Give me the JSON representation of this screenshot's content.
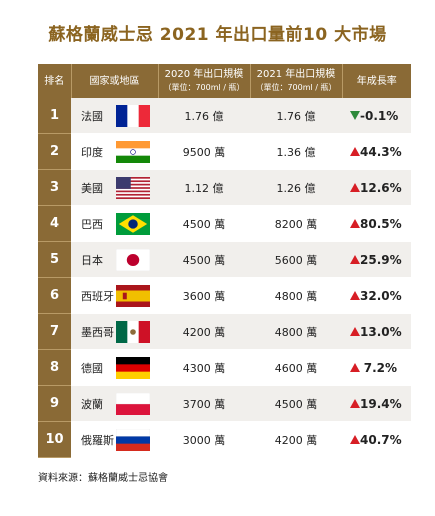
{
  "title": "蘇格蘭威士忌 2021 年出口量前10 大市場",
  "headers": {
    "rank": "排名",
    "country": "國家或地區",
    "y2020_line1": "2020 年出口規模",
    "y2020_line2": "（單位：700ml / 瓶）",
    "y2021_line1": "2021 年出口規模",
    "y2021_line2": "（單位：700ml / 瓶）",
    "growth": "年成長率"
  },
  "rows": [
    {
      "rank": "1",
      "country": "法國",
      "flag": "france-flag-icon",
      "v2020": "1.76 億",
      "v2021": "1.76 億",
      "growth": "-0.1%",
      "trend": "down"
    },
    {
      "rank": "2",
      "country": "印度",
      "flag": "india-flag-icon",
      "v2020": "9500 萬",
      "v2021": "1.36 億",
      "growth": "44.3%",
      "trend": "up"
    },
    {
      "rank": "3",
      "country": "美國",
      "flag": "usa-flag-icon",
      "v2020": "1.12 億",
      "v2021": "1.26 億",
      "growth": "12.6%",
      "trend": "up"
    },
    {
      "rank": "4",
      "country": "巴西",
      "flag": "brazil-flag-icon",
      "v2020": "4500 萬",
      "v2021": "8200 萬",
      "growth": "80.5%",
      "trend": "up"
    },
    {
      "rank": "5",
      "country": "日本",
      "flag": "japan-flag-icon",
      "v2020": "4500 萬",
      "v2021": "5600 萬",
      "growth": "25.9%",
      "trend": "up"
    },
    {
      "rank": "6",
      "country": "西班牙",
      "flag": "spain-flag-icon",
      "v2020": "3600 萬",
      "v2021": "4800 萬",
      "growth": "32.0%",
      "trend": "up"
    },
    {
      "rank": "7",
      "country": "墨西哥",
      "flag": "mexico-flag-icon",
      "v2020": "4200 萬",
      "v2021": "4800 萬",
      "growth": "13.0%",
      "trend": "up"
    },
    {
      "rank": "8",
      "country": "德國",
      "flag": "germany-flag-icon",
      "v2020": "4300 萬",
      "v2021": "4600 萬",
      "growth": "7.2%",
      "trend": "up"
    },
    {
      "rank": "9",
      "country": "波蘭",
      "flag": "poland-flag-icon",
      "v2020": "3700 萬",
      "v2021": "4500 萬",
      "growth": "19.4%",
      "trend": "up"
    },
    {
      "rank": "10",
      "country": "俄羅斯",
      "flag": "russia-flag-icon",
      "v2020": "3000 萬",
      "v2021": "4200 萬",
      "growth": "40.7%",
      "trend": "up"
    }
  ],
  "colors": {
    "header": "#8a6a36",
    "title": "#8b6420",
    "up": "#d71e25",
    "down": "#2d8a3a"
  },
  "source": "資料來源：蘇格蘭威士忌協會"
}
